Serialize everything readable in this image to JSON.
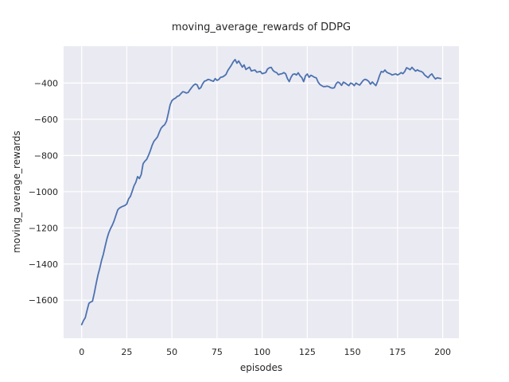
{
  "chart_data": {
    "type": "line",
    "title": "moving_average_rewards of DDPG",
    "xlabel": "episodes",
    "ylabel": "moving_average_rewards",
    "xlim": [
      -10,
      209
    ],
    "ylim": [
      -1810,
      -196
    ],
    "grid": true,
    "legend": false,
    "xticks": [
      {
        "v": 0,
        "label": "0"
      },
      {
        "v": 25,
        "label": "25"
      },
      {
        "v": 50,
        "label": "50"
      },
      {
        "v": 75,
        "label": "75"
      },
      {
        "v": 100,
        "label": "100"
      },
      {
        "v": 125,
        "label": "125"
      },
      {
        "v": 150,
        "label": "150"
      },
      {
        "v": 175,
        "label": "175"
      },
      {
        "v": 200,
        "label": "200"
      }
    ],
    "yticks": [
      {
        "v": -400,
        "label": "−400"
      },
      {
        "v": -600,
        "label": "−600"
      },
      {
        "v": -800,
        "label": "−800"
      },
      {
        "v": -1000,
        "label": "−1000"
      },
      {
        "v": -1200,
        "label": "−1200"
      },
      {
        "v": -1400,
        "label": "−1400"
      },
      {
        "v": -1600,
        "label": "−1600"
      }
    ],
    "colors": {
      "line": "#4C72B0",
      "axes_bg": "#EAEAF2",
      "grid": "#FFFFFF",
      "text": "#262626",
      "figure_bg": "#FFFFFF"
    },
    "series": [
      {
        "x_start": 0,
        "x_step": 1,
        "values": [
          -1735,
          -1712,
          -1697,
          -1655,
          -1617,
          -1610,
          -1605,
          -1560,
          -1510,
          -1462,
          -1424,
          -1380,
          -1347,
          -1302,
          -1260,
          -1228,
          -1204,
          -1184,
          -1161,
          -1130,
          -1100,
          -1090,
          -1085,
          -1080,
          -1076,
          -1068,
          -1040,
          -1026,
          -998,
          -968,
          -948,
          -917,
          -928,
          -905,
          -846,
          -832,
          -822,
          -800,
          -775,
          -745,
          -722,
          -710,
          -698,
          -672,
          -650,
          -638,
          -630,
          -610,
          -568,
          -520,
          -497,
          -488,
          -483,
          -473,
          -470,
          -458,
          -448,
          -450,
          -455,
          -452,
          -437,
          -424,
          -412,
          -405,
          -410,
          -432,
          -425,
          -405,
          -390,
          -386,
          -380,
          -382,
          -387,
          -390,
          -375,
          -385,
          -380,
          -368,
          -366,
          -360,
          -352,
          -330,
          -315,
          -300,
          -282,
          -270,
          -290,
          -278,
          -295,
          -312,
          -300,
          -325,
          -318,
          -312,
          -333,
          -330,
          -328,
          -340,
          -338,
          -336,
          -348,
          -345,
          -342,
          -322,
          -315,
          -313,
          -330,
          -338,
          -342,
          -354,
          -350,
          -348,
          -342,
          -348,
          -375,
          -392,
          -368,
          -352,
          -349,
          -355,
          -343,
          -360,
          -370,
          -392,
          -360,
          -350,
          -368,
          -357,
          -362,
          -368,
          -371,
          -395,
          -408,
          -414,
          -420,
          -419,
          -417,
          -420,
          -426,
          -428,
          -426,
          -403,
          -394,
          -400,
          -413,
          -395,
          -400,
          -407,
          -414,
          -400,
          -404,
          -414,
          -400,
          -406,
          -411,
          -398,
          -385,
          -379,
          -383,
          -390,
          -406,
          -394,
          -404,
          -414,
          -390,
          -360,
          -336,
          -340,
          -328,
          -340,
          -345,
          -349,
          -355,
          -352,
          -349,
          -355,
          -350,
          -342,
          -348,
          -336,
          -315,
          -320,
          -326,
          -313,
          -324,
          -334,
          -327,
          -333,
          -335,
          -341,
          -355,
          -363,
          -370,
          -357,
          -349,
          -365,
          -377,
          -371,
          -373,
          -375
        ]
      }
    ]
  }
}
